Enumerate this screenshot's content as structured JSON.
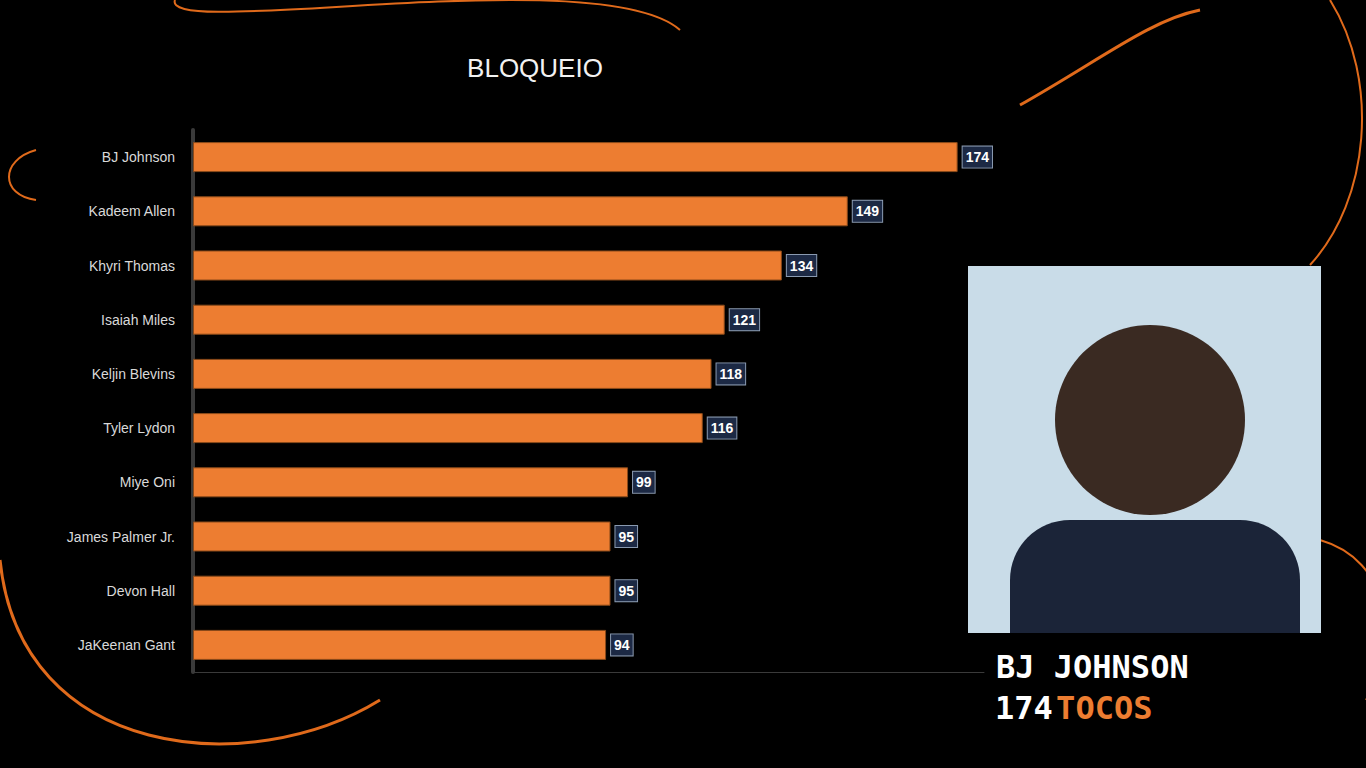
{
  "chart_data": {
    "type": "bar",
    "title": "BLOQUEIO",
    "orientation": "horizontal",
    "categories": [
      "BJ Johnson",
      "Kadeem Allen",
      "Khyri Thomas",
      "Isaiah Miles",
      "Keljin Blevins",
      "Tyler Lydon",
      "Miye Oni",
      "James Palmer Jr.",
      "Devon Hall",
      "JaKeenan Gant"
    ],
    "values": [
      174,
      149,
      134,
      121,
      118,
      116,
      99,
      95,
      95,
      94
    ],
    "color": "#ed7d31",
    "xlim": [
      0,
      180
    ],
    "grid": false,
    "data_labels": true,
    "tick_labels": "y",
    "annotations": [
      "BJ JOHNSON",
      "174",
      "TOCOS"
    ]
  }
}
